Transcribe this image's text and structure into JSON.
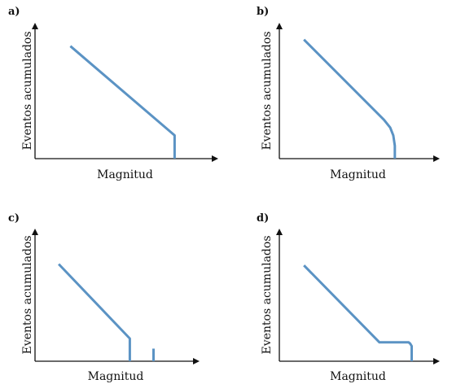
{
  "chart_data": [
    {
      "type": "line",
      "panel_label": "a)",
      "xlabel": "Magnitud",
      "ylabel": "Eventos acumulados",
      "xlim": [
        0,
        100
      ],
      "ylim": [
        0,
        100
      ],
      "grid": false,
      "series": [
        {
          "x": [
            20,
            79,
            79
          ],
          "y": [
            87,
            18,
            0
          ]
        }
      ]
    },
    {
      "type": "line",
      "panel_label": "b)",
      "xlabel": "Magnitud",
      "ylabel": "Eventos acumulados",
      "xlim": [
        0,
        100
      ],
      "ylim": [
        0,
        100
      ],
      "grid": false,
      "series": [
        {
          "x": [
            16,
            68,
            72,
            74,
            75,
            75
          ],
          "y": [
            92,
            30,
            24,
            18,
            10,
            0
          ]
        }
      ]
    },
    {
      "type": "line",
      "panel_label": "c)",
      "xlabel": "Magnitud",
      "ylabel": "Eventos acumulados",
      "xlim": [
        0,
        100
      ],
      "ylim": [
        0,
        100
      ],
      "grid": false,
      "series": [
        {
          "x": [
            15,
            60,
            60
          ],
          "y": [
            77,
            18,
            0
          ]
        },
        {
          "x": [
            75,
            75
          ],
          "y": [
            10,
            0
          ]
        }
      ]
    },
    {
      "type": "line",
      "panel_label": "d)",
      "xlabel": "Magnitud",
      "ylabel": "Eventos acumulados",
      "xlim": [
        0,
        100
      ],
      "ylim": [
        0,
        100
      ],
      "grid": false,
      "series": [
        {
          "x": [
            16,
            65,
            84,
            85,
            86,
            86
          ],
          "y": [
            76,
            15,
            15,
            14,
            12,
            0
          ]
        }
      ]
    }
  ],
  "colors": {
    "line": "#5b93c4",
    "axis": "#111111"
  }
}
